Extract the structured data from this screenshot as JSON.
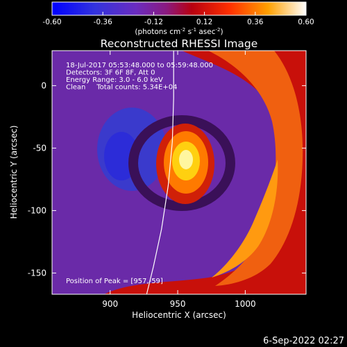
{
  "colorbar": {
    "ticks": [
      "-0.60",
      "-0.36",
      "-0.12",
      "0.12",
      "0.36",
      "0.60"
    ],
    "tick_values": [
      -0.6,
      -0.36,
      -0.12,
      0.12,
      0.36,
      0.6
    ],
    "range": [
      -0.6,
      0.6
    ],
    "units_pre": "(photons cm",
    "units_sup1": "-2",
    "units_mid1": " s",
    "units_sup2": "-1",
    "units_mid2": " asec",
    "units_sup3": "-2",
    "units_post": ")"
  },
  "chart_data": {
    "type": "heatmap",
    "title": "Reconstructed RHESSI Image",
    "xlabel": "Heliocentric X (arcsec)",
    "ylabel": "Heliocentric Y (arcsec)",
    "xlim": [
      857,
      1045
    ],
    "ylim": [
      -167,
      28
    ],
    "x_ticks": [
      900,
      950,
      1000
    ],
    "y_ticks": [
      0,
      -50,
      -100,
      -150
    ],
    "colormap": "hot",
    "value_range": [
      -0.6,
      0.6
    ],
    "peak": {
      "x": 957,
      "y": -59
    },
    "limb_curve": [
      [
        947,
        28
      ],
      [
        947,
        -10
      ],
      [
        946,
        -45
      ],
      [
        943,
        -80
      ],
      [
        938,
        -115
      ],
      [
        932,
        -145
      ],
      [
        927,
        -167
      ]
    ],
    "annotations": {
      "line1": "18-Jul-2017 05:53:48.000 to 05:59:48.000",
      "line2": "Detectors: 3F 6F 8F, Att 0",
      "line3": "Energy Range: 3.0 - 6.0 keV",
      "line4": "Clean     Total counts: 5.34E+04",
      "peak_label": "Position of Peak = [957,-59]"
    }
  },
  "timestamp": "6-Sep-2022 02:27"
}
